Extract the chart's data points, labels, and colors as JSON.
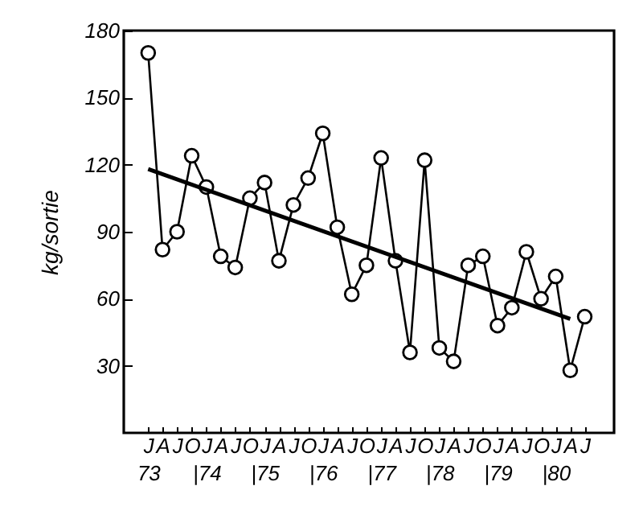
{
  "chart_data": {
    "type": "line",
    "ylabel": "kg/sortie",
    "marker": "circle",
    "grid": false,
    "x": [
      "1973-01",
      "1973-04",
      "1973-07",
      "1973-10",
      "1974-01",
      "1974-04",
      "1974-07",
      "1974-10",
      "1975-01",
      "1975-04",
      "1975-07",
      "1975-10",
      "1976-01",
      "1976-04",
      "1976-07",
      "1976-10",
      "1977-01",
      "1977-04",
      "1977-07",
      "1977-10",
      "1978-01",
      "1978-04",
      "1978-07",
      "1978-10",
      "1979-01",
      "1979-04",
      "1979-07",
      "1979-10",
      "1980-01",
      "1980-04",
      "1980-07"
    ],
    "series": [
      {
        "color": "#000000",
        "values": [
          170,
          82,
          90,
          124,
          110,
          79,
          74,
          105,
          112,
          77,
          102,
          114,
          134,
          92,
          62,
          75,
          123,
          77,
          36,
          122,
          38,
          32,
          75,
          79,
          48,
          56,
          81,
          60,
          70,
          28,
          52
        ]
      },
      {
        "type": "line",
        "marker": "none",
        "color": "#000000",
        "x": [
          "1973-01",
          "1980-04"
        ],
        "values": [
          118,
          51
        ]
      }
    ],
    "xlim": [
      "1972-08",
      "1981-01"
    ],
    "ylim": [
      0,
      180
    ],
    "yticks": [
      30,
      60,
      90,
      120,
      150,
      180
    ],
    "xticks": [
      {
        "value": "1973-01",
        "label": "J\n73"
      },
      {
        "value": "1973-04",
        "label": "A"
      },
      {
        "value": "1973-07",
        "label": "J"
      },
      {
        "value": "1973-10",
        "label": "O"
      },
      {
        "value": "1974-01",
        "label": "J\n|74"
      },
      {
        "value": "1974-04",
        "label": "A"
      },
      {
        "value": "1974-07",
        "label": "J"
      },
      {
        "value": "1974-10",
        "label": "O"
      },
      {
        "value": "1975-01",
        "label": "J\n|75"
      },
      {
        "value": "1975-04",
        "label": "A"
      },
      {
        "value": "1975-07",
        "label": "J"
      },
      {
        "value": "1975-10",
        "label": "O"
      },
      {
        "value": "1976-01",
        "label": "J\n|76"
      },
      {
        "value": "1976-04",
        "label": "A"
      },
      {
        "value": "1976-07",
        "label": "J"
      },
      {
        "value": "1976-10",
        "label": "O"
      },
      {
        "value": "1977-01",
        "label": "J\n|77"
      },
      {
        "value": "1977-04",
        "label": "A"
      },
      {
        "value": "1977-07",
        "label": "J"
      },
      {
        "value": "1977-10",
        "label": "O"
      },
      {
        "value": "1978-01",
        "label": "J\n|78"
      },
      {
        "value": "1978-04",
        "label": "A"
      },
      {
        "value": "1978-07",
        "label": "J"
      },
      {
        "value": "1978-10",
        "label": "O"
      },
      {
        "value": "1979-01",
        "label": "J\n|79"
      },
      {
        "value": "1979-04",
        "label": "A"
      },
      {
        "value": "1979-07",
        "label": "J"
      },
      {
        "value": "1979-10",
        "label": "O"
      },
      {
        "value": "1980-01",
        "label": "J\n|80"
      },
      {
        "value": "1980-04",
        "label": "A"
      },
      {
        "value": "1980-07",
        "label": "J"
      }
    ]
  }
}
